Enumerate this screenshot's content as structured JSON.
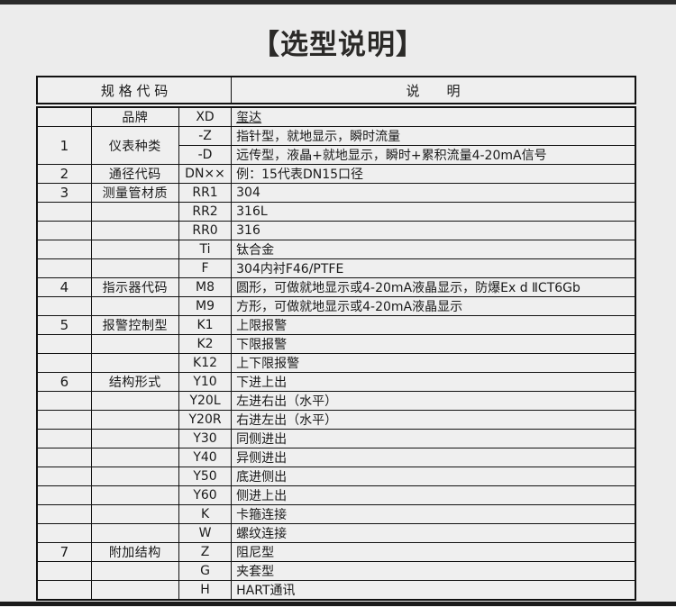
{
  "page": {
    "title": "【选型说明】",
    "background_color": "#ececec",
    "top_bar_color": "#2b2b2b",
    "bottom_bar_color": "#1b1b1b",
    "table_border_color": "#111111",
    "title_color": "#2b2a28"
  },
  "table": {
    "header": {
      "spec_code": "规 格 代 码",
      "description": "说　　明"
    },
    "rows": [
      {
        "num": "",
        "category": "品牌",
        "code": "XD",
        "desc": "玺达",
        "underline": true
      },
      {
        "num": "1",
        "category": "仪表种类",
        "code": "-Z",
        "desc": "指针型，就地显示，瞬时流量",
        "span": 2
      },
      {
        "merged": true,
        "code": "-D",
        "desc": "远传型，液晶+就地显示，瞬时+累积流量4-20mA信号"
      },
      {
        "num": "2",
        "category": "通径代码",
        "code": "DN××",
        "desc": "例：15代表DN15口径"
      },
      {
        "num": "3",
        "category": "测量管材质",
        "code": "RR1",
        "desc": "304"
      },
      {
        "num": "",
        "category": "",
        "code": "RR2",
        "desc": "316L"
      },
      {
        "num": "",
        "category": "",
        "code": "RR0",
        "desc": "316"
      },
      {
        "num": "",
        "category": "",
        "code": "Ti",
        "desc": "钛合金"
      },
      {
        "num": "",
        "category": "",
        "code": "F",
        "desc": "304内衬F46/PTFE"
      },
      {
        "num": "4",
        "category": "指示器代码",
        "code": "M8",
        "desc": "圆形，可做就地显示或4-20mA液晶显示，防爆Ex d ⅡCT6Gb"
      },
      {
        "num": "",
        "category": "",
        "code": "M9",
        "desc": "方形，可做就地显示或4-20mA液晶显示"
      },
      {
        "num": "5",
        "category": "报警控制型",
        "code": "K1",
        "desc": "上限报警"
      },
      {
        "num": "",
        "category": "",
        "code": "K2",
        "desc": "下限报警"
      },
      {
        "num": "",
        "category": "",
        "code": "K12",
        "desc": "上下限报警"
      },
      {
        "num": "6",
        "category": "结构形式",
        "code": "Y10",
        "desc": "下进上出"
      },
      {
        "num": "",
        "category": "",
        "code": "Y20L",
        "desc": "左进右出（水平）"
      },
      {
        "num": "",
        "category": "",
        "code": "Y20R",
        "desc": "右进左出（水平）"
      },
      {
        "num": "",
        "category": "",
        "code": "Y30",
        "desc": "同侧进出"
      },
      {
        "num": "",
        "category": "",
        "code": "Y40",
        "desc": "异侧进出"
      },
      {
        "num": "",
        "category": "",
        "code": "Y50",
        "desc": "底进侧出"
      },
      {
        "num": "",
        "category": "",
        "code": "Y60",
        "desc": "侧进上出"
      },
      {
        "num": "",
        "category": "",
        "code": "K",
        "desc": "卡箍连接"
      },
      {
        "num": "",
        "category": "",
        "code": "W",
        "desc": "螺纹连接"
      },
      {
        "num": "7",
        "category": "附加结构",
        "code": "Z",
        "desc": "阻尼型"
      },
      {
        "num": "",
        "category": "",
        "code": "G",
        "desc": "夹套型"
      },
      {
        "num": "",
        "category": "",
        "code": "H",
        "desc": "HART通讯"
      }
    ]
  }
}
